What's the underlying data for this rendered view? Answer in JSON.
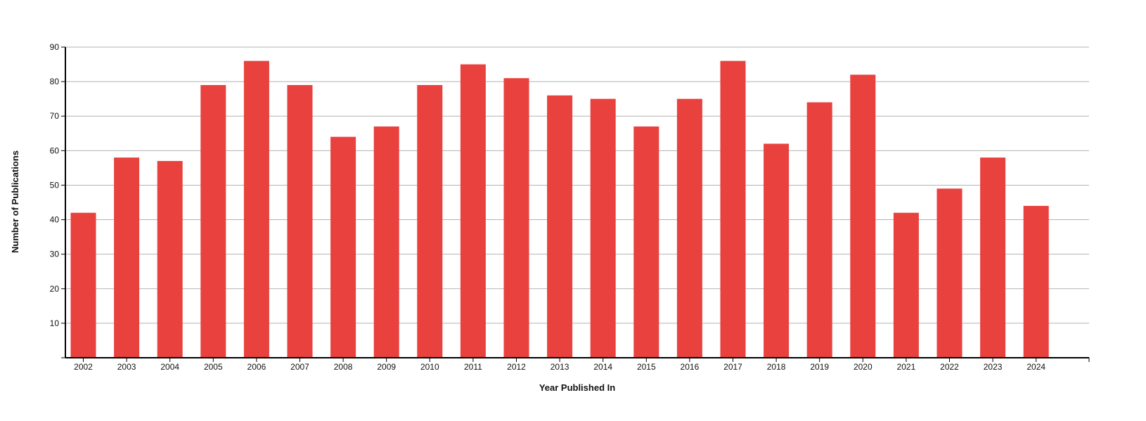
{
  "chart_data": {
    "type": "bar",
    "categories": [
      "2002",
      "2003",
      "2004",
      "2005",
      "2006",
      "2007",
      "2008",
      "2009",
      "2010",
      "2011",
      "2012",
      "2013",
      "2014",
      "2015",
      "2016",
      "2017",
      "2018",
      "2019",
      "2020",
      "2021",
      "2022",
      "2023",
      "2024"
    ],
    "values": [
      42,
      58,
      57,
      79,
      86,
      79,
      64,
      67,
      79,
      85,
      81,
      76,
      75,
      67,
      75,
      86,
      62,
      74,
      82,
      42,
      49,
      58,
      44
    ],
    "title": "",
    "xlabel": "Year Published In",
    "ylabel": "Number of Publications",
    "ylim": [
      0,
      90
    ],
    "yticks": [
      10,
      20,
      30,
      40,
      50,
      60,
      70,
      80,
      90
    ],
    "grid": true,
    "bar_color": "#e8413e",
    "grid_color": "#b3b3b3",
    "axis_color": "#000000"
  }
}
